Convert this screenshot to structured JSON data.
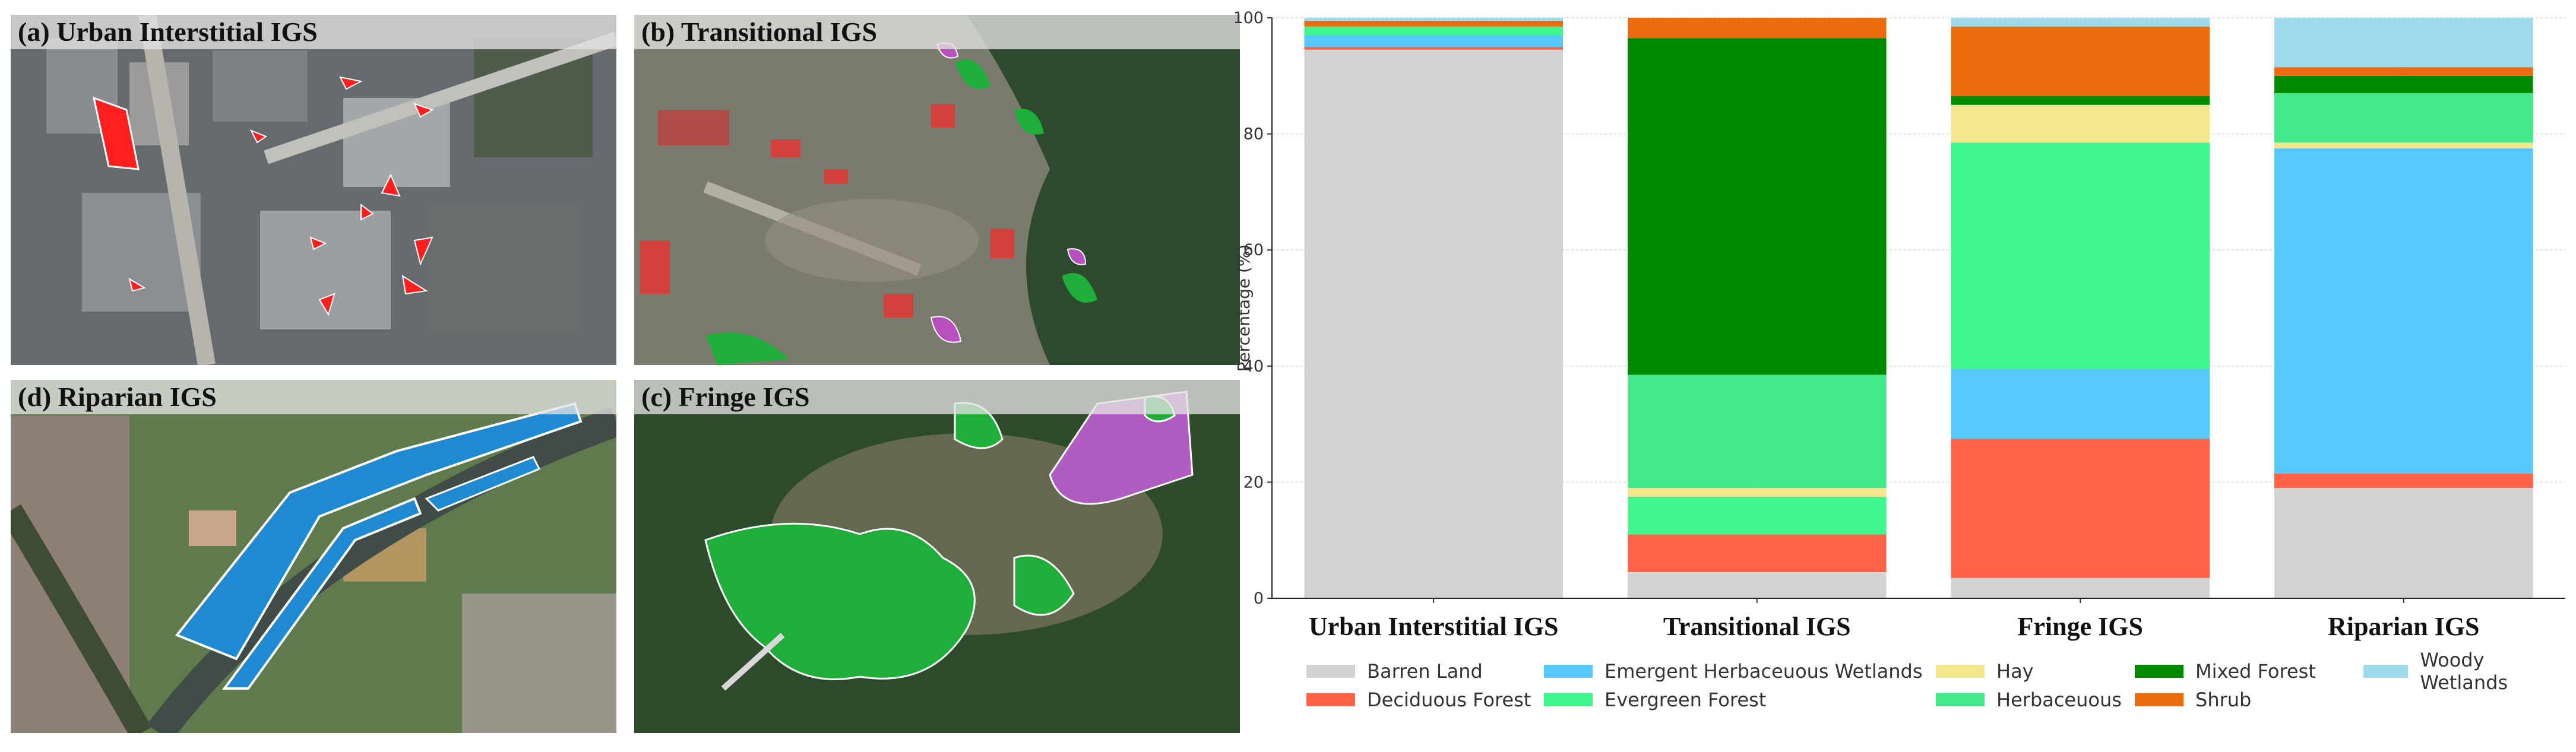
{
  "panels": [
    {
      "id": "a",
      "title": "(a) Urban Interstitial IGS"
    },
    {
      "id": "b",
      "title": "(b) Transitional IGS"
    },
    {
      "id": "d",
      "title": "(d) Riparian IGS"
    },
    {
      "id": "c",
      "title": "(c) Fringe IGS"
    }
  ],
  "colors": {
    "Barren Land": "#d3d3d3",
    "Deciduous Forest": "#ff6347",
    "Emergent Herbaceuous Wetlands": "#56c8fb",
    "Evergreen Forest": "#3ef58e",
    "Hay": "#f3e68c",
    "Herbaceuous": "#43e88a",
    "Mixed Forest": "#008a00",
    "Shrub": "#ec6b0e",
    "Woody Wetlands": "#9fdaea"
  },
  "chart_data": {
    "type": "bar",
    "stacked": true,
    "categories": [
      "Urban Interstitial IGS",
      "Transitional IGS",
      "Fringe IGS",
      "Riparian IGS"
    ],
    "ylabel": "Percentage (%)",
    "xlabel": "",
    "ylim": [
      0,
      100
    ],
    "yticks": [
      "0",
      "20",
      "40",
      "60",
      "80",
      "100"
    ],
    "grid": true,
    "legend_position": "bottom",
    "series": [
      {
        "name": "Barren Land",
        "values": [
          94.5,
          4.5,
          3.5,
          19.0
        ]
      },
      {
        "name": "Deciduous Forest",
        "values": [
          0.5,
          6.5,
          24.0,
          2.5
        ]
      },
      {
        "name": "Emergent Herbaceuous Wetlands",
        "values": [
          2.0,
          0,
          12.0,
          56.0
        ]
      },
      {
        "name": "Evergreen Forest",
        "values": [
          1.5,
          6.5,
          39.0,
          0
        ]
      },
      {
        "name": "Hay",
        "values": [
          0,
          1.5,
          6.5,
          1.0
        ]
      },
      {
        "name": "Herbaceuous",
        "values": [
          0,
          19.5,
          0,
          8.5
        ]
      },
      {
        "name": "Mixed Forest",
        "values": [
          0,
          58.0,
          1.5,
          3.0
        ]
      },
      {
        "name": "Shrub",
        "values": [
          1.0,
          3.5,
          12.0,
          1.5
        ]
      },
      {
        "name": "Woody Wetlands",
        "values": [
          0.5,
          0,
          1.5,
          8.5
        ]
      }
    ]
  }
}
